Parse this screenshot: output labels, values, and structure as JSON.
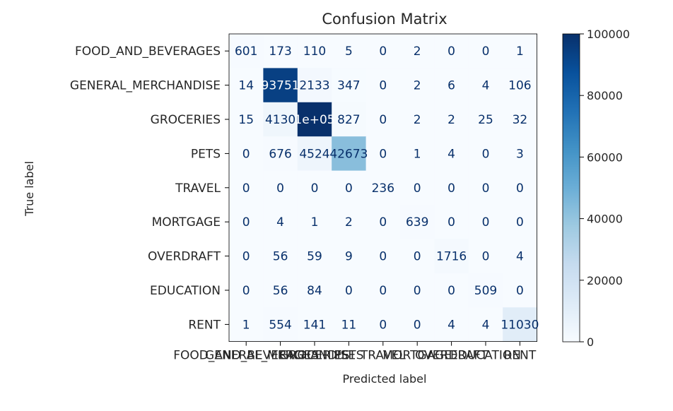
{
  "chart_data": {
    "type": "heatmap",
    "title": "Confusion Matrix",
    "xlabel": "Predicted label",
    "ylabel": "True label",
    "categories": [
      "FOOD_AND_BEVERAGES",
      "GENERAL_MERCHANDISE",
      "GROCERIES",
      "PETS",
      "TRAVEL",
      "MORTGAGE",
      "OVERDRAFT",
      "EDUCATION",
      "RENT"
    ],
    "values": [
      [
        601,
        173,
        110,
        5,
        0,
        2,
        0,
        0,
        1
      ],
      [
        14,
        93751,
        2133,
        347,
        0,
        2,
        6,
        4,
        106
      ],
      [
        15,
        4130,
        100000,
        827,
        0,
        2,
        2,
        25,
        32
      ],
      [
        0,
        676,
        4524,
        42673,
        0,
        1,
        4,
        0,
        3
      ],
      [
        0,
        0,
        0,
        0,
        236,
        0,
        0,
        0,
        0
      ],
      [
        0,
        4,
        1,
        2,
        0,
        639,
        0,
        0,
        0
      ],
      [
        0,
        56,
        59,
        9,
        0,
        0,
        1716,
        0,
        4
      ],
      [
        0,
        56,
        84,
        0,
        0,
        0,
        0,
        509,
        0
      ],
      [
        1,
        554,
        141,
        11,
        0,
        0,
        4,
        4,
        11030
      ]
    ],
    "cell_labels": [
      [
        "601",
        "173",
        "110",
        "5",
        "0",
        "2",
        "0",
        "0",
        "1"
      ],
      [
        "14",
        "93751",
        "2133",
        "347",
        "0",
        "2",
        "6",
        "4",
        "106"
      ],
      [
        "15",
        "4130",
        "1e+05",
        "827",
        "0",
        "2",
        "2",
        "25",
        "32"
      ],
      [
        "0",
        "676",
        "4524",
        "42673",
        "0",
        "1",
        "4",
        "0",
        "3"
      ],
      [
        "0",
        "0",
        "0",
        "0",
        "236",
        "0",
        "0",
        "0",
        "0"
      ],
      [
        "0",
        "4",
        "1",
        "2",
        "0",
        "639",
        "0",
        "0",
        "0"
      ],
      [
        "0",
        "56",
        "59",
        "9",
        "0",
        "0",
        "1716",
        "0",
        "4"
      ],
      [
        "0",
        "56",
        "84",
        "0",
        "0",
        "0",
        "0",
        "509",
        "0"
      ],
      [
        "1",
        "554",
        "141",
        "11",
        "0",
        "0",
        "4",
        "4",
        "11030"
      ]
    ],
    "colorbar": {
      "colormap": "Blues",
      "range": [
        0,
        100000
      ],
      "ticks": [
        0,
        20000,
        40000,
        60000,
        80000,
        100000
      ],
      "tick_labels": [
        "0",
        "20000",
        "40000",
        "60000",
        "80000",
        "100000"
      ]
    },
    "grid": false
  }
}
